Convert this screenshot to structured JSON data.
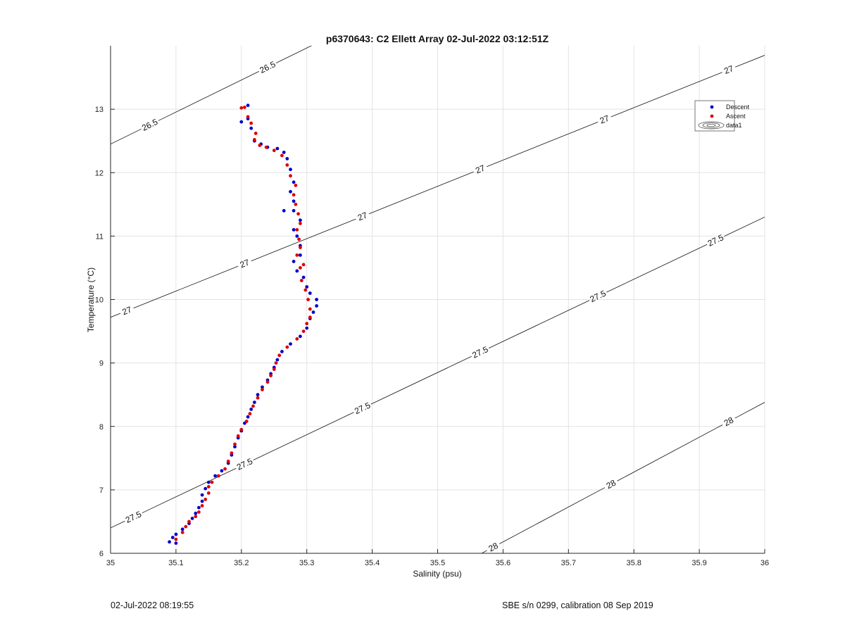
{
  "chart_data": {
    "type": "scatter",
    "title": "p6370643: C2 Ellett Array 02-Jul-2022 03:12:51Z",
    "xlabel": "Salinity (psu)",
    "ylabel": "Temperature (°C)",
    "xlim": [
      35,
      36
    ],
    "ylim": [
      6,
      14
    ],
    "xticks": [
      "35",
      "35.1",
      "35.2",
      "35.3",
      "35.4",
      "35.5",
      "35.6",
      "35.7",
      "35.8",
      "35.9",
      "36"
    ],
    "yticks": [
      "6",
      "7",
      "8",
      "9",
      "10",
      "11",
      "12",
      "13"
    ],
    "grid": true,
    "legend_position": "top-right",
    "legend": [
      "Descent",
      "Ascent",
      "data1"
    ],
    "series": [
      {
        "name": "Descent",
        "color": "#0000cc",
        "points": [
          [
            35.09,
            6.18
          ],
          [
            35.095,
            6.25
          ],
          [
            35.1,
            6.16
          ],
          [
            35.1,
            6.3
          ],
          [
            35.11,
            6.38
          ],
          [
            35.12,
            6.47
          ],
          [
            35.125,
            6.55
          ],
          [
            35.13,
            6.63
          ],
          [
            35.135,
            6.72
          ],
          [
            35.14,
            6.82
          ],
          [
            35.14,
            6.92
          ],
          [
            35.145,
            7.02
          ],
          [
            35.15,
            7.12
          ],
          [
            35.16,
            7.22
          ],
          [
            35.17,
            7.3
          ],
          [
            35.18,
            7.42
          ],
          [
            35.185,
            7.55
          ],
          [
            35.19,
            7.68
          ],
          [
            35.195,
            7.82
          ],
          [
            35.2,
            7.93
          ],
          [
            35.205,
            8.05
          ],
          [
            35.21,
            8.15
          ],
          [
            35.215,
            8.27
          ],
          [
            35.22,
            8.38
          ],
          [
            35.225,
            8.5
          ],
          [
            35.232,
            8.62
          ],
          [
            35.24,
            8.73
          ],
          [
            35.245,
            8.83
          ],
          [
            35.25,
            8.93
          ],
          [
            35.255,
            9.05
          ],
          [
            35.262,
            9.18
          ],
          [
            35.275,
            9.3
          ],
          [
            35.29,
            9.42
          ],
          [
            35.3,
            9.55
          ],
          [
            35.305,
            9.7
          ],
          [
            35.31,
            9.8
          ],
          [
            35.315,
            9.9
          ],
          [
            35.315,
            10.0
          ],
          [
            35.305,
            10.1
          ],
          [
            35.3,
            10.2
          ],
          [
            35.295,
            10.35
          ],
          [
            35.285,
            10.45
          ],
          [
            35.28,
            10.6
          ],
          [
            35.29,
            10.7
          ],
          [
            35.29,
            10.85
          ],
          [
            35.285,
            11.0
          ],
          [
            35.28,
            11.1
          ],
          [
            35.29,
            11.25
          ],
          [
            35.28,
            11.4
          ],
          [
            35.265,
            11.4
          ],
          [
            35.28,
            11.55
          ],
          [
            35.275,
            11.7
          ],
          [
            35.28,
            11.85
          ],
          [
            35.275,
            12.05
          ],
          [
            35.27,
            12.22
          ],
          [
            35.265,
            12.32
          ],
          [
            35.255,
            12.38
          ],
          [
            35.24,
            12.4
          ],
          [
            35.23,
            12.45
          ],
          [
            35.22,
            12.5
          ],
          [
            35.215,
            12.7
          ],
          [
            35.21,
            12.85
          ],
          [
            35.2,
            12.8
          ],
          [
            35.21,
            13.06
          ]
        ]
      },
      {
        "name": "Ascent",
        "color": "#dd0000",
        "points": [
          [
            35.1,
            6.22
          ],
          [
            35.11,
            6.33
          ],
          [
            35.115,
            6.42
          ],
          [
            35.12,
            6.5
          ],
          [
            35.13,
            6.58
          ],
          [
            35.135,
            6.65
          ],
          [
            35.14,
            6.75
          ],
          [
            35.145,
            6.85
          ],
          [
            35.15,
            6.95
          ],
          [
            35.15,
            7.05
          ],
          [
            35.155,
            7.12
          ],
          [
            35.165,
            7.22
          ],
          [
            35.175,
            7.33
          ],
          [
            35.18,
            7.45
          ],
          [
            35.185,
            7.58
          ],
          [
            35.19,
            7.72
          ],
          [
            35.195,
            7.85
          ],
          [
            35.2,
            7.95
          ],
          [
            35.208,
            8.08
          ],
          [
            35.213,
            8.2
          ],
          [
            35.218,
            8.32
          ],
          [
            35.225,
            8.45
          ],
          [
            35.232,
            8.58
          ],
          [
            35.24,
            8.7
          ],
          [
            35.245,
            8.8
          ],
          [
            35.25,
            8.9
          ],
          [
            35.253,
            9.0
          ],
          [
            35.258,
            9.12
          ],
          [
            35.27,
            9.25
          ],
          [
            35.285,
            9.38
          ],
          [
            35.295,
            9.5
          ],
          [
            35.3,
            9.62
          ],
          [
            35.305,
            9.72
          ],
          [
            35.305,
            9.85
          ],
          [
            35.302,
            10.0
          ],
          [
            35.298,
            10.15
          ],
          [
            35.292,
            10.3
          ],
          [
            35.29,
            10.5
          ],
          [
            35.295,
            10.55
          ],
          [
            35.285,
            10.7
          ],
          [
            35.29,
            10.82
          ],
          [
            35.288,
            10.95
          ],
          [
            35.285,
            11.1
          ],
          [
            35.29,
            11.2
          ],
          [
            35.287,
            11.35
          ],
          [
            35.283,
            11.5
          ],
          [
            35.28,
            11.65
          ],
          [
            35.283,
            11.8
          ],
          [
            35.275,
            11.95
          ],
          [
            35.27,
            12.12
          ],
          [
            35.262,
            12.27
          ],
          [
            35.25,
            12.35
          ],
          [
            35.238,
            12.4
          ],
          [
            35.228,
            12.43
          ],
          [
            35.22,
            12.52
          ],
          [
            35.222,
            12.62
          ],
          [
            35.215,
            12.78
          ],
          [
            35.21,
            12.88
          ],
          [
            35.2,
            13.02
          ],
          [
            35.205,
            13.03
          ]
        ]
      }
    ],
    "contours": {
      "name": "data1",
      "lines": [
        {
          "level": "26.5",
          "y0": 12.45,
          "slope": 5.05,
          "labels": [
            35.06,
            35.24
          ]
        },
        {
          "level": "27",
          "y0": 9.72,
          "slope": 4.13,
          "labels": [
            35.025,
            35.205,
            35.385,
            35.565,
            35.755,
            35.945
          ]
        },
        {
          "level": "27.5",
          "y0": 6.4,
          "slope": 4.9,
          "labels": [
            35.035,
            35.205,
            35.385,
            35.565,
            35.745,
            35.925
          ]
        },
        {
          "level": "28",
          "y0": 2.88,
          "slope": 5.5,
          "labels": [
            35.585,
            35.765,
            35.945
          ]
        }
      ]
    }
  },
  "footer": {
    "timestamp": "02-Jul-2022 08:19:55",
    "calibration": "SBE s/n 0299, calibration 08 Sep 2019"
  }
}
